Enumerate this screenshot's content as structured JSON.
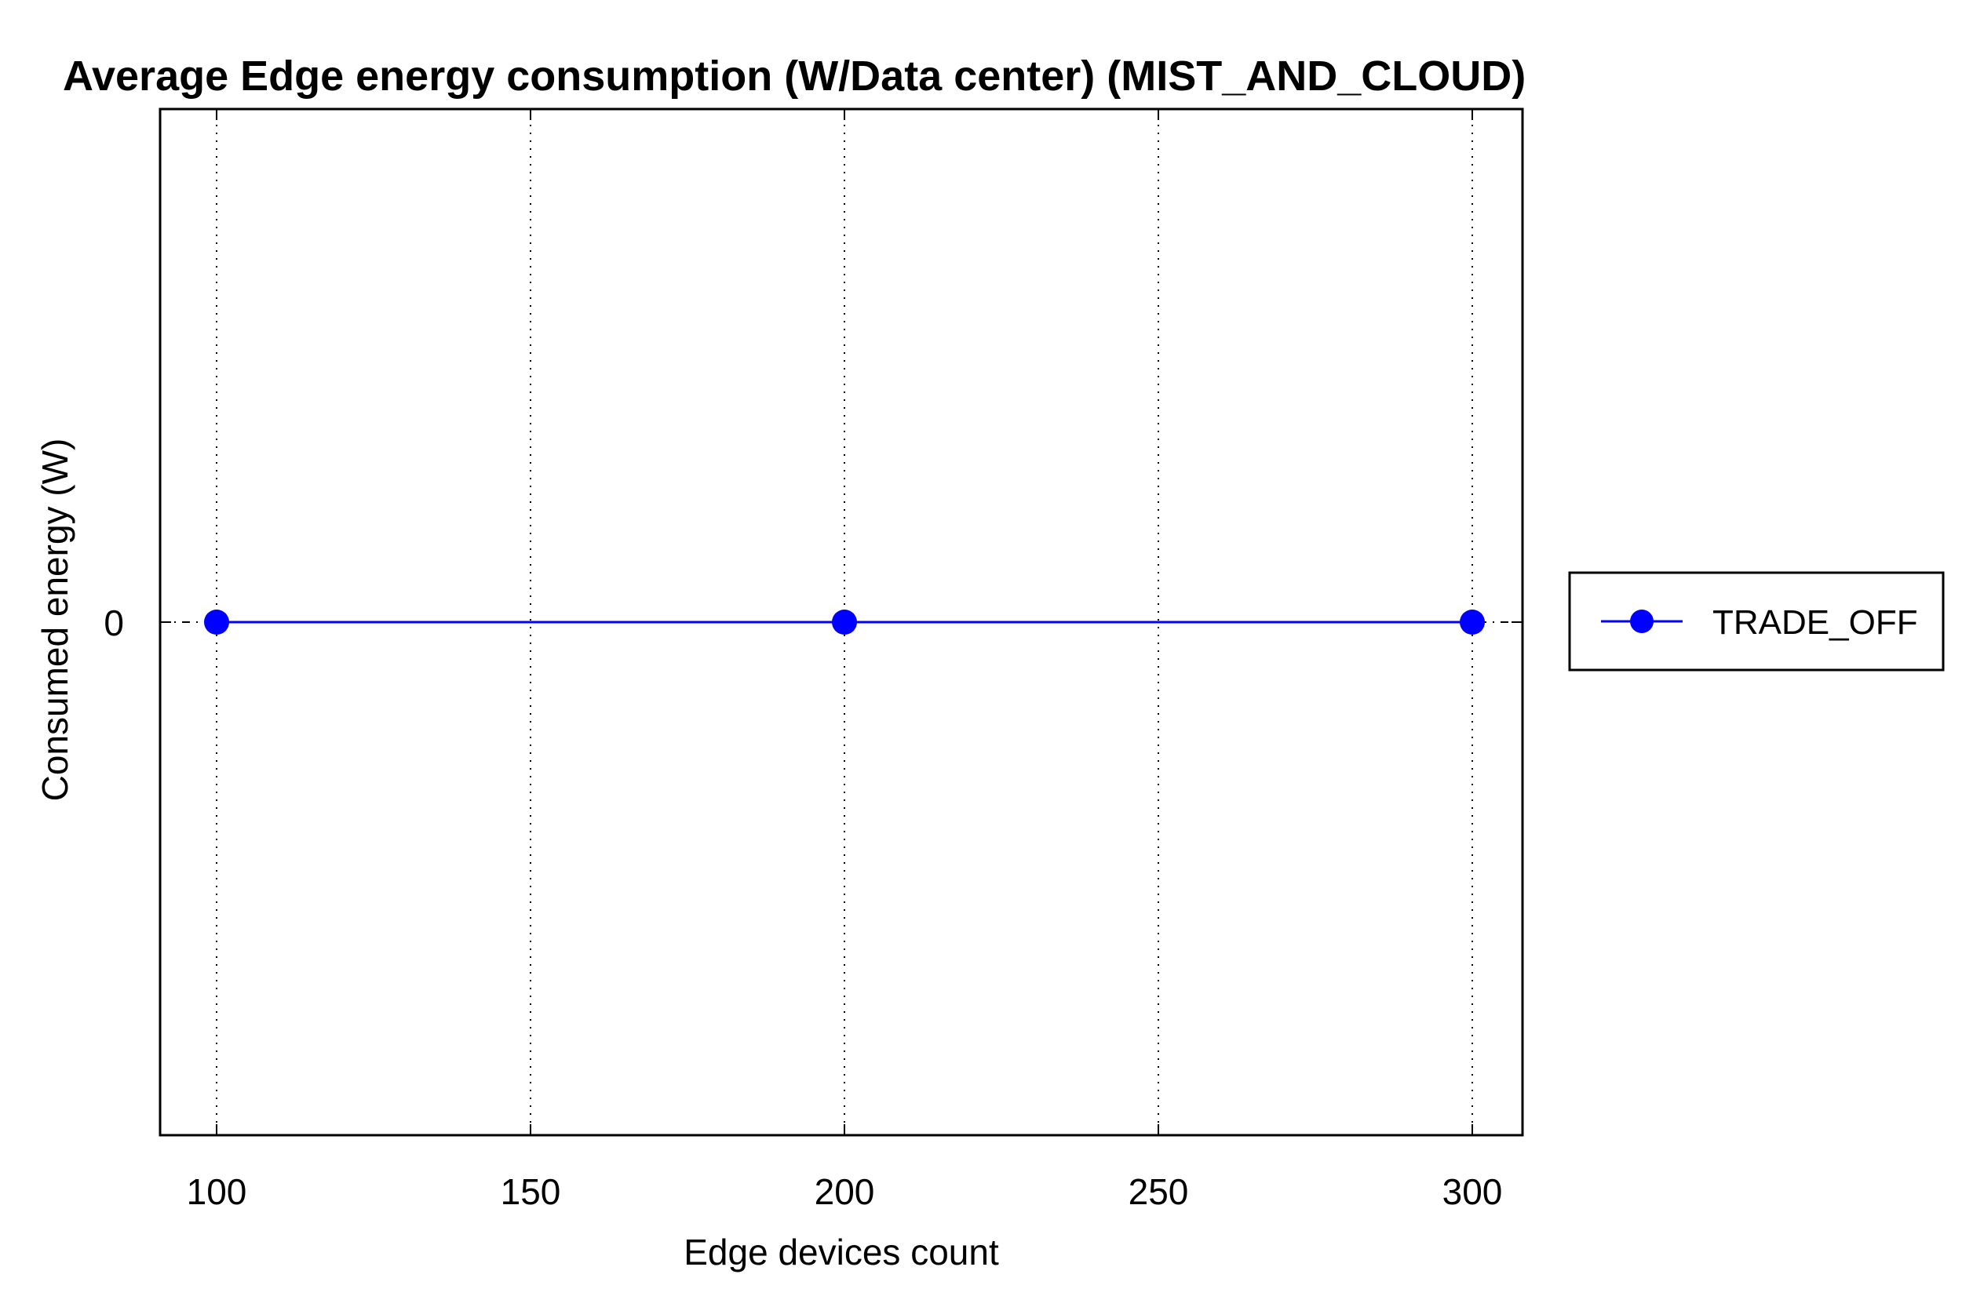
{
  "chart_data": {
    "type": "line",
    "title": "Average Edge energy consumption (W/Data center) (MIST_AND_CLOUD)",
    "xlabel": "Edge devices count",
    "ylabel": "Consumed energy (W)",
    "x_ticks": [
      100,
      150,
      200,
      250,
      300
    ],
    "y_ticks": [
      0
    ],
    "xlim": [
      91,
      308
    ],
    "ylim": [
      -1,
      1
    ],
    "grid": "vertical dotted",
    "legend_position": "right",
    "series": [
      {
        "name": "TRADE_OFF",
        "color": "#0000ff",
        "marker": "circle",
        "x": [
          100,
          200,
          300
        ],
        "y": [
          0,
          0,
          0
        ]
      }
    ]
  }
}
